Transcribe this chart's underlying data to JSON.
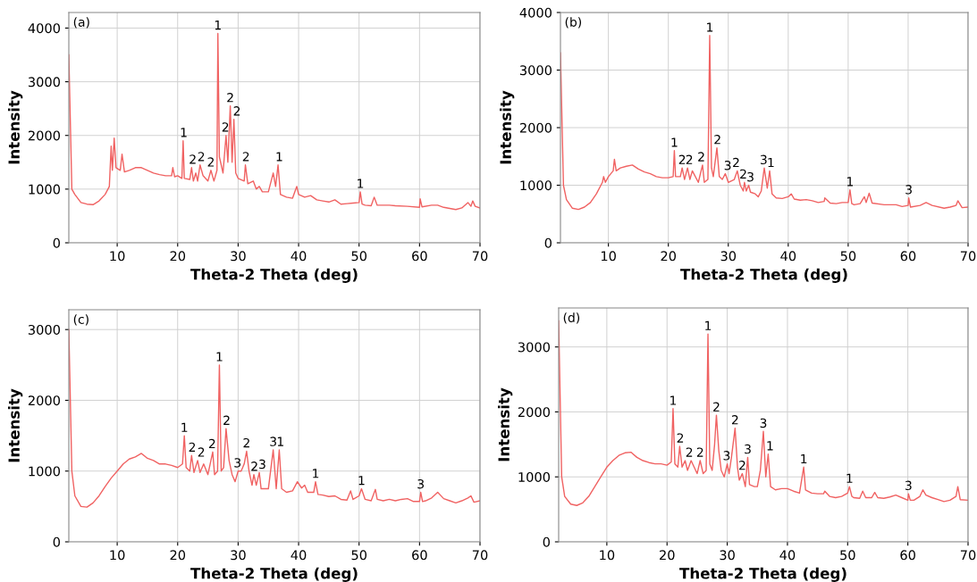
{
  "chart_data": [
    {
      "type": "line",
      "xlabel": "Theta-2 Theta (deg)",
      "ylabel": "Intensity",
      "xlim": [
        2,
        70
      ],
      "ylim": [
        0,
        4290
      ],
      "xticks": [
        10,
        20,
        30,
        40,
        50,
        60,
        70
      ],
      "yticks": [
        0,
        1000,
        2000,
        3000,
        4000
      ],
      "grid": true,
      "x": [
        2,
        2.5,
        3,
        4,
        5,
        6,
        7,
        8,
        8.7,
        9.0,
        9.2,
        9.5,
        9.8,
        10.5,
        10.8,
        11.2,
        12,
        13,
        14,
        15,
        16,
        17,
        18,
        19,
        19.2,
        19.5,
        20,
        20.7,
        20.9,
        21.1,
        22,
        22.3,
        22.6,
        23,
        23.3,
        23.7,
        24.2,
        25,
        25.5,
        26,
        26.5,
        26.65,
        26.9,
        27.5,
        28,
        28.3,
        28.7,
        29.0,
        29.3,
        29.6,
        30,
        31,
        31.2,
        31.6,
        32.5,
        33,
        33.5,
        34,
        35,
        35.8,
        36.2,
        36.6,
        37,
        38,
        39,
        39.7,
        40,
        41,
        42,
        43,
        44,
        45,
        46,
        47,
        48,
        49,
        50,
        50.2,
        50.5,
        51,
        52,
        52.5,
        53,
        55,
        56,
        58,
        60,
        60.1,
        60.4,
        62,
        63,
        64,
        66,
        67,
        68,
        68.5,
        68.8,
        69.2,
        70
      ],
      "series": [
        {
          "color": "#f06262",
          "values": [
            3500,
            1000,
            900,
            750,
            720,
            710,
            780,
            900,
            1050,
            1800,
            1350,
            1950,
            1400,
            1350,
            1650,
            1320,
            1350,
            1400,
            1400,
            1350,
            1300,
            1270,
            1250,
            1250,
            1400,
            1230,
            1250,
            1200,
            1900,
            1200,
            1180,
            1400,
            1150,
            1300,
            1150,
            1450,
            1250,
            1150,
            1350,
            1150,
            1350,
            3900,
            1600,
            1300,
            2000,
            1500,
            2550,
            1500,
            2300,
            1300,
            1200,
            1150,
            1450,
            1100,
            1150,
            1000,
            1050,
            950,
            950,
            1300,
            1050,
            1450,
            900,
            850,
            830,
            1050,
            900,
            850,
            880,
            800,
            780,
            760,
            800,
            720,
            730,
            740,
            750,
            950,
            720,
            700,
            690,
            850,
            700,
            700,
            690,
            680,
            660,
            820,
            670,
            700,
            700,
            660,
            620,
            650,
            750,
            680,
            780,
            680,
            650
          ]
        }
      ],
      "annotations": [
        "(a)",
        {
          "text": "1",
          "x": 21.0,
          "y": 1900
        },
        {
          "text": "2",
          "x": 22.5,
          "y": 1400
        },
        {
          "text": "2",
          "x": 23.9,
          "y": 1450
        },
        {
          "text": "2",
          "x": 25.5,
          "y": 1350
        },
        {
          "text": "1",
          "x": 26.65,
          "y": 3900
        },
        {
          "text": "2",
          "x": 27.9,
          "y": 2000
        },
        {
          "text": "2",
          "x": 28.7,
          "y": 2550
        },
        {
          "text": "2",
          "x": 29.8,
          "y": 2300
        },
        {
          "text": "2",
          "x": 31.3,
          "y": 1450
        },
        {
          "text": "1",
          "x": 36.8,
          "y": 1450
        },
        {
          "text": "1",
          "x": 50.2,
          "y": 950
        }
      ]
    },
    {
      "type": "line",
      "xlabel": "Theta-2 Theta (deg)",
      "ylabel": "Intensity",
      "xlim": [
        2,
        70
      ],
      "ylim": [
        0,
        4000
      ],
      "xticks": [
        10,
        20,
        30,
        40,
        50,
        60,
        70
      ],
      "yticks": [
        0,
        1000,
        2000,
        3000,
        4000
      ],
      "grid": true,
      "x": [
        2,
        2.5,
        3,
        4,
        5,
        6,
        7,
        8,
        9,
        9.2,
        9.5,
        10,
        10.8,
        11,
        11.3,
        12,
        13,
        14,
        15,
        16,
        17,
        18,
        19,
        20,
        20.8,
        21.0,
        21.2,
        22,
        22.3,
        22.7,
        23.2,
        23.6,
        24,
        25,
        25.7,
        26,
        26.6,
        26.9,
        27.2,
        27.5,
        28.1,
        28.5,
        29,
        29.5,
        30,
        31,
        31.5,
        32,
        32.5,
        32.7,
        33,
        33.4,
        33.7,
        34.5,
        35,
        35.5,
        36,
        36.5,
        36.9,
        37.3,
        38,
        39,
        40,
        40.5,
        41,
        42,
        43,
        44,
        45,
        46,
        46.1,
        47,
        48,
        49,
        50,
        50.3,
        50.6,
        51,
        52,
        52.7,
        53,
        53.5,
        54,
        56,
        58,
        59,
        60,
        60.1,
        60.4,
        62,
        63,
        64,
        66,
        67,
        68,
        68.3,
        69,
        70
      ],
      "series": [
        {
          "color": "#f06262",
          "values": [
            3300,
            1000,
            750,
            600,
            580,
            620,
            700,
            850,
            1050,
            1150,
            1050,
            1150,
            1250,
            1450,
            1250,
            1300,
            1330,
            1350,
            1280,
            1230,
            1200,
            1150,
            1130,
            1130,
            1150,
            1600,
            1150,
            1150,
            1300,
            1100,
            1300,
            1100,
            1250,
            1050,
            1350,
            1050,
            1100,
            3600,
            1300,
            1150,
            1650,
            1150,
            1100,
            1200,
            1050,
            1100,
            1250,
            1000,
            900,
            1050,
            900,
            1000,
            880,
            850,
            800,
            900,
            1300,
            950,
            1250,
            850,
            780,
            770,
            800,
            850,
            760,
            740,
            750,
            730,
            700,
            720,
            780,
            690,
            680,
            700,
            700,
            920,
            680,
            660,
            680,
            800,
            700,
            860,
            690,
            660,
            660,
            630,
            650,
            780,
            620,
            650,
            700,
            650,
            600,
            620,
            650,
            730,
            610,
            620
          ]
        }
      ],
      "annotations": [
        "(b)",
        {
          "text": "1",
          "x": 21.0,
          "y": 1600
        },
        {
          "text": "2",
          "x": 22.3,
          "y": 1300
        },
        {
          "text": "2",
          "x": 23.5,
          "y": 1300
        },
        {
          "text": "2",
          "x": 25.5,
          "y": 1350
        },
        {
          "text": "1",
          "x": 26.9,
          "y": 3600
        },
        {
          "text": "2",
          "x": 28.2,
          "y": 1650
        },
        {
          "text": "3",
          "x": 29.9,
          "y": 1200
        },
        {
          "text": "2",
          "x": 31.3,
          "y": 1250
        },
        {
          "text": "2",
          "x": 32.5,
          "y": 1050
        },
        {
          "text": "3",
          "x": 33.7,
          "y": 1000
        },
        {
          "text": "3",
          "x": 35.9,
          "y": 1300
        },
        {
          "text": "1",
          "x": 37.1,
          "y": 1250
        },
        {
          "text": "1",
          "x": 50.3,
          "y": 920
        },
        {
          "text": "3",
          "x": 60.1,
          "y": 780
        }
      ]
    },
    {
      "type": "line",
      "xlabel": "Theta-2 Theta (deg)",
      "ylabel": "Intensity",
      "xlim": [
        2,
        70
      ],
      "ylim": [
        0,
        3280
      ],
      "xticks": [
        10,
        20,
        30,
        40,
        50,
        60,
        70
      ],
      "yticks": [
        0,
        1000,
        2000,
        3000
      ],
      "grid": true,
      "x": [
        2,
        2.5,
        3,
        4,
        5,
        6,
        7,
        8,
        9,
        10,
        11,
        12,
        13,
        14,
        15,
        16,
        17,
        18,
        19,
        20,
        20.8,
        21.1,
        21.4,
        22,
        22.3,
        22.7,
        23.3,
        23.7,
        24.3,
        25,
        25.8,
        26.1,
        26.6,
        26.9,
        27.2,
        27.6,
        28.0,
        28.5,
        29,
        29.5,
        30,
        30.5,
        31,
        31.4,
        31.8,
        32.3,
        32.6,
        33,
        33.5,
        33.8,
        35,
        35.8,
        36.3,
        36.8,
        37.2,
        38,
        39,
        39.8,
        40.5,
        41,
        41.5,
        42.5,
        42.8,
        43.2,
        44,
        45,
        46,
        47,
        48,
        48.6,
        49,
        50,
        50.4,
        51,
        52,
        52.7,
        53,
        54,
        55,
        56,
        57,
        58,
        59,
        60,
        60.2,
        60.5,
        61,
        62,
        63,
        64,
        65,
        66,
        67,
        68,
        68.5,
        69,
        70
      ],
      "series": [
        {
          "color": "#f06262",
          "values": [
            3000,
            1000,
            650,
            500,
            490,
            550,
            650,
            780,
            900,
            1000,
            1100,
            1170,
            1200,
            1250,
            1180,
            1150,
            1100,
            1100,
            1080,
            1050,
            1100,
            1500,
            1050,
            1000,
            1220,
            980,
            1150,
            980,
            1100,
            950,
            1270,
            950,
            1000,
            2500,
            1000,
            1050,
            1600,
            1150,
            950,
            850,
            1000,
            1000,
            1100,
            1280,
            1000,
            800,
            950,
            800,
            980,
            750,
            750,
            1300,
            750,
            1300,
            750,
            700,
            720,
            850,
            760,
            800,
            700,
            700,
            850,
            670,
            660,
            640,
            650,
            600,
            590,
            720,
            600,
            650,
            750,
            600,
            580,
            740,
            600,
            580,
            600,
            580,
            600,
            610,
            570,
            570,
            700,
            570,
            580,
            620,
            700,
            610,
            580,
            550,
            580,
            620,
            650,
            560,
            580
          ]
        }
      ],
      "annotations": [
        "(c)",
        {
          "text": "1",
          "x": 21.1,
          "y": 1500
        },
        {
          "text": "2",
          "x": 22.4,
          "y": 1220
        },
        {
          "text": "2",
          "x": 23.9,
          "y": 1150
        },
        {
          "text": "2",
          "x": 25.7,
          "y": 1270
        },
        {
          "text": "1",
          "x": 26.9,
          "y": 2500
        },
        {
          "text": "2",
          "x": 28.1,
          "y": 1600
        },
        {
          "text": "3",
          "x": 29.9,
          "y": 1000
        },
        {
          "text": "2",
          "x": 31.4,
          "y": 1280
        },
        {
          "text": "2",
          "x": 32.7,
          "y": 950
        },
        {
          "text": "3",
          "x": 34.0,
          "y": 980
        },
        {
          "text": "3",
          "x": 35.8,
          "y": 1300
        },
        {
          "text": "1",
          "x": 37.0,
          "y": 1300
        },
        {
          "text": "1",
          "x": 42.8,
          "y": 850
        },
        {
          "text": "1",
          "x": 50.4,
          "y": 750
        },
        {
          "text": "3",
          "x": 60.2,
          "y": 700
        }
      ]
    },
    {
      "type": "line",
      "xlabel": "Theta-2 Theta (deg)",
      "ylabel": "Intensity",
      "xlim": [
        2,
        70
      ],
      "ylim": [
        0,
        3600
      ],
      "xticks": [
        10,
        20,
        30,
        40,
        50,
        60,
        70
      ],
      "yticks": [
        0,
        1000,
        2000,
        3000
      ],
      "grid": true,
      "x": [
        2,
        2.5,
        3,
        4,
        5,
        6,
        7,
        8,
        9,
        10,
        11,
        12,
        13,
        14,
        15,
        16,
        17,
        18,
        19,
        20,
        20.7,
        21.0,
        21.3,
        21.8,
        22.1,
        22.5,
        23,
        23.4,
        24,
        24.5,
        25,
        25.5,
        26,
        26.5,
        26.8,
        27.1,
        27.5,
        27.9,
        28.2,
        28.6,
        29,
        29.5,
        30,
        30.3,
        30.7,
        31.3,
        31.7,
        32,
        32.5,
        33,
        33.4,
        33.7,
        34.5,
        35,
        35.5,
        36.0,
        36.4,
        36.8,
        37.2,
        38,
        39,
        40,
        41,
        42,
        42.7,
        43,
        44,
        45,
        46,
        46.2,
        47,
        48,
        49,
        50,
        50.3,
        50.7,
        51,
        52,
        52.5,
        53,
        54,
        54.5,
        55,
        56,
        57,
        58,
        59,
        60,
        60.1,
        60.4,
        61,
        62,
        62.5,
        63,
        64,
        65,
        66,
        67,
        68,
        68.3,
        68.7,
        70
      ],
      "series": [
        {
          "color": "#f06262",
          "values": [
            3400,
            1000,
            700,
            580,
            560,
            600,
            700,
            850,
            1000,
            1150,
            1250,
            1330,
            1370,
            1380,
            1300,
            1250,
            1220,
            1200,
            1200,
            1180,
            1230,
            2050,
            1200,
            1150,
            1470,
            1150,
            1250,
            1100,
            1250,
            1150,
            1050,
            1250,
            1050,
            1100,
            3200,
            1200,
            1100,
            1500,
            1950,
            1400,
            1100,
            1000,
            1200,
            1050,
            1300,
            1750,
            1150,
            950,
            1050,
            850,
            1300,
            880,
            850,
            850,
            1100,
            1700,
            1000,
            1350,
            850,
            800,
            820,
            820,
            780,
            750,
            1150,
            800,
            750,
            740,
            740,
            780,
            700,
            680,
            700,
            750,
            850,
            700,
            680,
            670,
            780,
            680,
            680,
            760,
            680,
            670,
            690,
            720,
            680,
            640,
            740,
            640,
            640,
            700,
            800,
            720,
            680,
            650,
            620,
            640,
            700,
            850,
            650,
            640
          ]
        }
      ],
      "annotations": [
        "(d)",
        {
          "text": "1",
          "x": 21.0,
          "y": 2050
        },
        {
          "text": "2",
          "x": 22.2,
          "y": 1470
        },
        {
          "text": "2",
          "x": 23.7,
          "y": 1250
        },
        {
          "text": "2",
          "x": 25.5,
          "y": 1250
        },
        {
          "text": "1",
          "x": 26.8,
          "y": 3200
        },
        {
          "text": "2",
          "x": 28.2,
          "y": 1950
        },
        {
          "text": "3",
          "x": 29.9,
          "y": 1200
        },
        {
          "text": "2",
          "x": 31.3,
          "y": 1750
        },
        {
          "text": "2",
          "x": 32.5,
          "y": 1050
        },
        {
          "text": "3",
          "x": 33.4,
          "y": 1300
        },
        {
          "text": "3",
          "x": 36.0,
          "y": 1700
        },
        {
          "text": "1",
          "x": 37.1,
          "y": 1350
        },
        {
          "text": "1",
          "x": 42.7,
          "y": 1150
        },
        {
          "text": "1",
          "x": 50.3,
          "y": 850
        },
        {
          "text": "3",
          "x": 60.1,
          "y": 740
        }
      ]
    }
  ]
}
